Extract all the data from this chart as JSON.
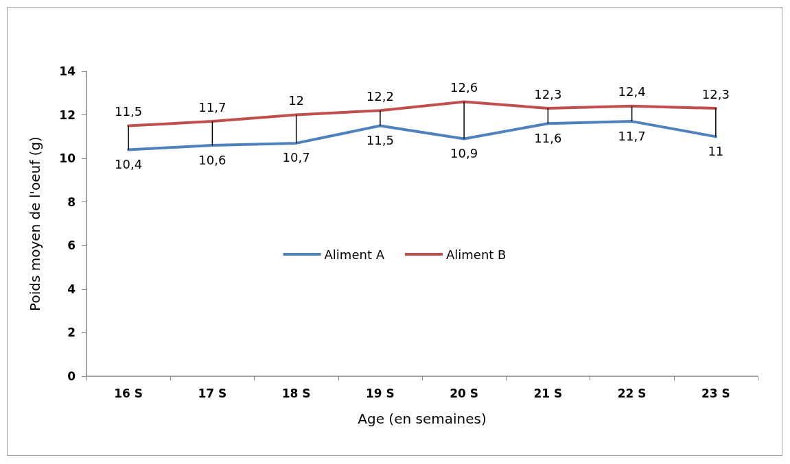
{
  "chart_data": {
    "type": "line",
    "xlabel": "Age (en semaines)",
    "ylabel": "Poids moyen de l'oeuf (g)",
    "categories": [
      "16 S",
      "17 S",
      "18 S",
      "19 S",
      "20 S",
      "21 S",
      "22 S",
      "23 S"
    ],
    "series": [
      {
        "name": "Aliment A",
        "color": "#4f81bd",
        "values": [
          10.4,
          10.6,
          10.7,
          11.5,
          10.9,
          11.6,
          11.7,
          11
        ],
        "value_labels": [
          "10,4",
          "10,6",
          "10,7",
          "11,5",
          "10,9",
          "11,6",
          "11,7",
          "11"
        ],
        "errors": [
          [
            10.4,
            11.5
          ],
          [
            10.6,
            11.7
          ],
          [
            10.7,
            12
          ],
          [
            11.5,
            12.2
          ],
          [
            10.9,
            12.6
          ],
          [
            11.6,
            12.3
          ],
          [
            11.7,
            12.4
          ],
          [
            11,
            12.3
          ]
        ]
      },
      {
        "name": "Aliment B",
        "color": "#c0504d",
        "values": [
          11.5,
          11.7,
          12,
          12.2,
          12.6,
          12.3,
          12.4,
          12.3
        ],
        "value_labels": [
          "11,5",
          "11,7",
          "12",
          "12,2",
          "12,6",
          "12,3",
          "12,4",
          "12,3"
        ]
      }
    ],
    "ylim": [
      0,
      14
    ],
    "yticks": [
      0,
      2,
      4,
      6,
      8,
      10,
      12,
      14
    ],
    "grid": false,
    "legend": "center",
    "marker": "none",
    "line_style": "solid"
  }
}
